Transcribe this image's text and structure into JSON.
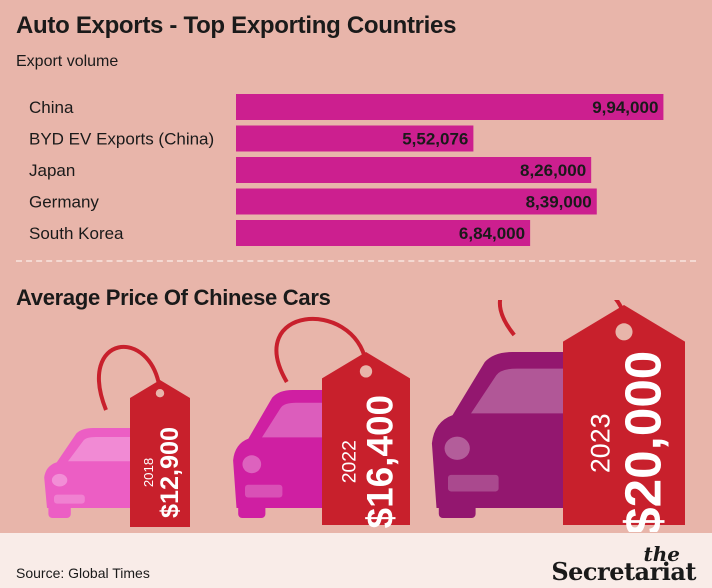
{
  "title": "Auto Exports - Top Exporting Countries",
  "subtitle": "Export volume",
  "section2_title": "Average Price Of Chinese Cars",
  "source": "Source: Global Times",
  "brand": {
    "the": "the",
    "name": "Secretariat"
  },
  "colors": {
    "background": "#e8b5aa",
    "bar": "#cc1f8f",
    "tag": "#c8202c",
    "car_2018": "#ec5ec4",
    "car_2022": "#cf1fa2",
    "car_2023": "#93176f"
  },
  "chart_data": [
    {
      "type": "bar",
      "orientation": "horizontal",
      "categories": [
        "China",
        "BYD EV Exports (China)",
        "Japan",
        "Germany",
        "South Korea"
      ],
      "values": [
        994000,
        552076,
        826000,
        839000,
        684000
      ],
      "value_labels": [
        "9,94,000",
        "5,52,076",
        "8,26,000",
        "8,39,000",
        "6,84,000"
      ],
      "title": "Auto Exports - Top Exporting Countries",
      "ylabel": "Export volume",
      "xlim": [
        0,
        1000000
      ],
      "grid": false
    },
    {
      "type": "bar",
      "categories": [
        "2018",
        "2022",
        "2023"
      ],
      "values": [
        12900,
        16400,
        20000
      ],
      "value_labels": [
        "$12,900",
        "$16,400",
        "$20,000"
      ],
      "title": "Average Price Of Chinese Cars"
    }
  ]
}
